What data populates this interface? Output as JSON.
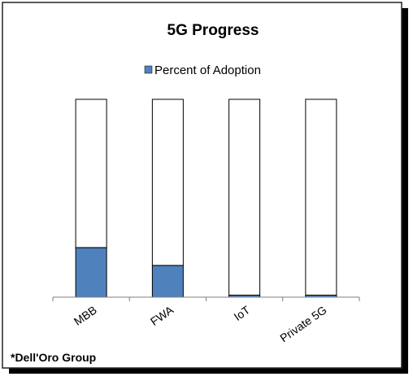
{
  "colors": {
    "fill": "#4f81bd",
    "remainder_fill": "#ffffff",
    "outline": "#000000",
    "frame": "#222222",
    "shadow": "#000000"
  },
  "source_note": "*Dell'Oro Group",
  "chart_data": {
    "type": "bar",
    "stacked": true,
    "title": "5G Progress",
    "legend": {
      "placement": "top",
      "entries": [
        "Percent of Adoption"
      ]
    },
    "categories": [
      "MBB",
      "FWA",
      "IoT",
      "Private 5G"
    ],
    "series": [
      {
        "name": "Percent of Adoption",
        "values": [
          25,
          16,
          1,
          1
        ]
      }
    ],
    "ylim": [
      0,
      100
    ],
    "grid": false,
    "y_axis_visible": false
  }
}
